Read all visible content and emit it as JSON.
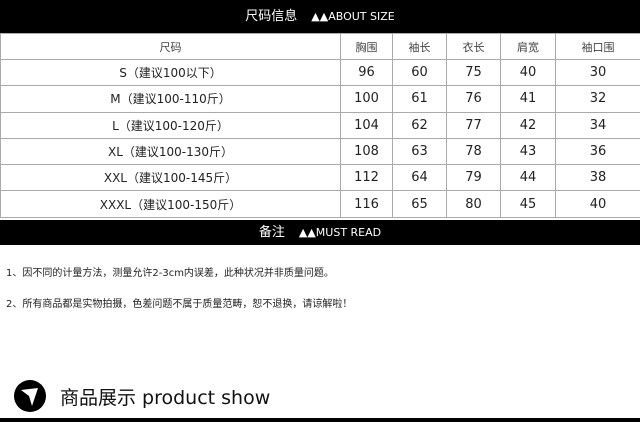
{
  "size_header": {
    "cn": "尺码信息",
    "en": "▲▲ABOUT SIZE"
  },
  "table": {
    "headers": [
      "尺码",
      "胸围",
      "袖长",
      "衣长",
      "肩宽",
      "袖口围"
    ],
    "rows": [
      [
        "S（建议100以下）",
        "96",
        "60",
        "75",
        "40",
        "30"
      ],
      [
        "M（建议100-110斤）",
        "100",
        "61",
        "76",
        "41",
        "32"
      ],
      [
        "L（建议100-120斤）",
        "104",
        "62",
        "77",
        "42",
        "34"
      ],
      [
        "XL（建议100-130斤）",
        "108",
        "63",
        "78",
        "43",
        "36"
      ],
      [
        "XXL（建议100-145斤）",
        "112",
        "64",
        "79",
        "44",
        "38"
      ],
      [
        "XXXL（建议100-150斤）",
        "116",
        "65",
        "80",
        "45",
        "40"
      ]
    ]
  },
  "notes_header": {
    "cn": "备注",
    "en": "▲▲MUST READ"
  },
  "notes": [
    "1、因不同的计量方法，测量允许2-3cm内误差，此种状况并非质量问题。",
    "2、所有商品都是实物拍摄，色差问题不属于质量范畴，恕不退换，请谅解啦！"
  ],
  "product_show": {
    "icon": "arrow-logo-icon",
    "label": "商品展示 product show"
  }
}
